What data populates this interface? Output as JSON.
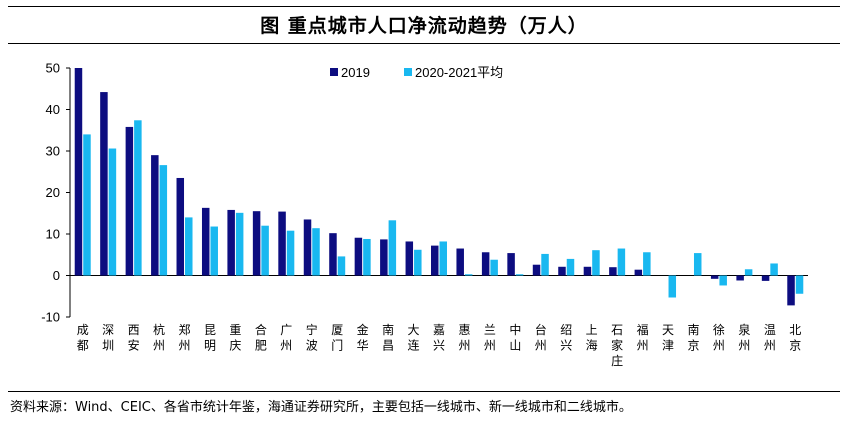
{
  "title": "图  重点城市人口净流动趋势（万人）",
  "source": "资料来源：Wind、CEIC、各省市统计年鉴，海通证券研究所，主要包括一线城市、新一线城市和二线城市。",
  "colors": {
    "s2019": "#0d0d80",
    "s2020": "#19b8f0"
  },
  "chart_data": {
    "type": "bar",
    "title": "重点城市人口净流动趋势（万人）",
    "ylim": [
      -10,
      50
    ],
    "yticks": [
      "-10",
      "0",
      "10",
      "20",
      "30",
      "40",
      "50"
    ],
    "legend_position": "top-center",
    "grid": false,
    "categories": [
      "成都",
      "深圳",
      "西安",
      "杭州",
      "郑州",
      "昆明",
      "重庆",
      "合肥",
      "广州",
      "宁波",
      "厦门",
      "金华",
      "南昌",
      "大连",
      "嘉兴",
      "惠州",
      "兰州",
      "中山",
      "台州",
      "绍兴",
      "上海",
      "石家庄",
      "福州",
      "天津",
      "南京",
      "徐州",
      "泉州",
      "温州",
      "北京"
    ],
    "series": [
      {
        "name": "2019",
        "values": [
          50,
          44.2,
          35.8,
          29,
          23.5,
          16.3,
          15.8,
          15.5,
          15.4,
          13.5,
          10.2,
          9.1,
          8.7,
          8.2,
          7.2,
          6.5,
          5.6,
          5.4,
          2.6,
          2.1,
          2.1,
          2.0,
          1.4,
          0,
          0,
          -0.8,
          -1.2,
          -1.3,
          -7.2
        ]
      },
      {
        "name": "2020-2021平均",
        "values": [
          34,
          30.6,
          37.4,
          26.6,
          14,
          11.8,
          15.1,
          12,
          10.8,
          11.4,
          4.6,
          8.8,
          13.3,
          6.2,
          8.2,
          0.3,
          3.8,
          0.3,
          5.2,
          4,
          6.1,
          6.5,
          5.6,
          -5.3,
          5.4,
          -2.4,
          1.5,
          2.9,
          -4.4
        ]
      }
    ]
  }
}
